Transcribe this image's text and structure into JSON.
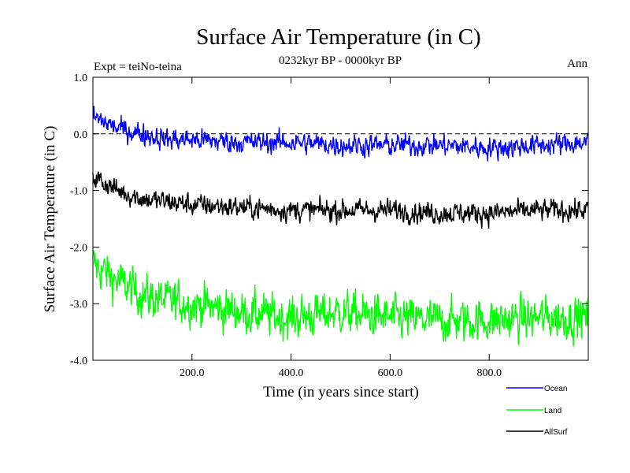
{
  "chart_data": {
    "type": "line",
    "title": "Surface Air Temperature (in C)",
    "subtitle": "0232kyr BP - 0000kyr BP",
    "left_label": "Expt = teiNo-teina",
    "right_label": "Ann",
    "xlabel": "Time (in years since start)",
    "ylabel": "Surface Air Temperature (in C)",
    "xlim": [
      0,
      1000
    ],
    "ylim": [
      -4.0,
      1.0
    ],
    "xticks": [
      200,
      400,
      600,
      800
    ],
    "xtick_labels": [
      "200.0",
      "400.0",
      "600.0",
      "800.0"
    ],
    "yticks": [
      1.0,
      0.0,
      -1.0,
      -2.0,
      -3.0,
      -4.0
    ],
    "ytick_labels": [
      "1.0",
      "0.0",
      "-1.0",
      "-2.0",
      "-3.0",
      "-4.0"
    ],
    "zero_line": "dashed",
    "series": [
      {
        "name": "Ocean",
        "color": "#0000ff",
        "trend_x": [
          0,
          50,
          100,
          150,
          200,
          300,
          400,
          500,
          600,
          700,
          800,
          900,
          1000
        ],
        "trend_y": [
          0.3,
          0.1,
          0.0,
          -0.1,
          -0.1,
          -0.15,
          -0.15,
          -0.2,
          -0.2,
          -0.2,
          -0.25,
          -0.2,
          -0.15
        ],
        "noise": 0.13
      },
      {
        "name": "Land",
        "color": "#00ff00",
        "trend_x": [
          0,
          50,
          100,
          150,
          200,
          300,
          400,
          500,
          600,
          700,
          800,
          900,
          1000
        ],
        "trend_y": [
          -2.3,
          -2.6,
          -2.85,
          -2.95,
          -3.0,
          -3.15,
          -3.25,
          -3.15,
          -3.25,
          -3.3,
          -3.3,
          -3.25,
          -3.25
        ],
        "noise": 0.25
      },
      {
        "name": "AllSurf",
        "color": "#000000",
        "trend_x": [
          0,
          50,
          100,
          150,
          200,
          300,
          400,
          500,
          600,
          700,
          800,
          900,
          1000
        ],
        "trend_y": [
          -0.75,
          -1.0,
          -1.15,
          -1.2,
          -1.25,
          -1.3,
          -1.35,
          -1.35,
          -1.35,
          -1.4,
          -1.4,
          -1.35,
          -1.35
        ],
        "noise": 0.13
      }
    ]
  }
}
